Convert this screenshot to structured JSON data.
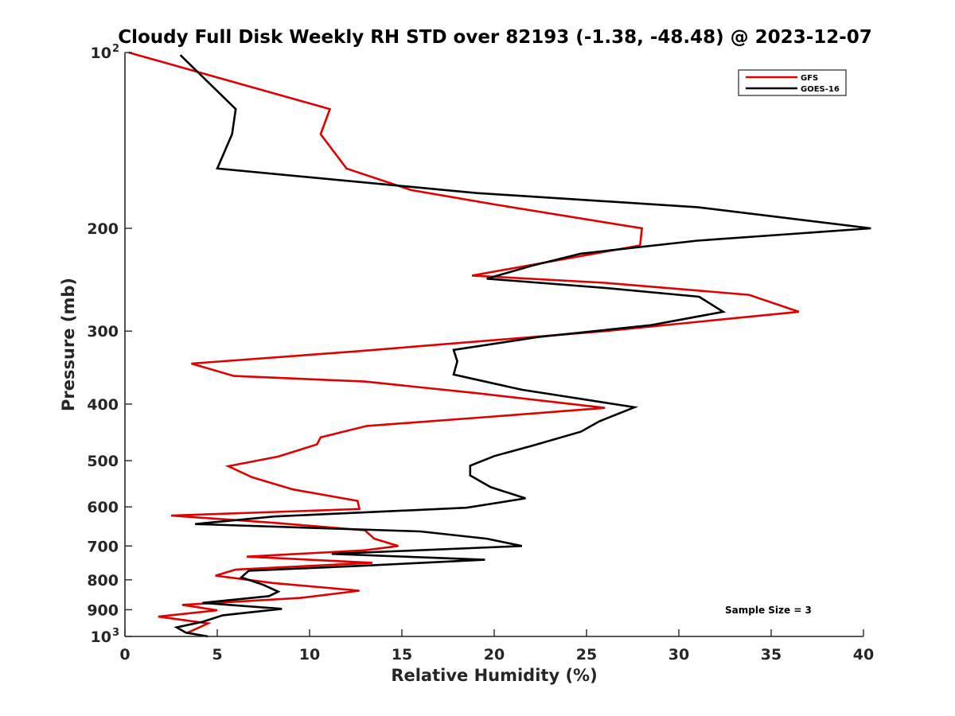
{
  "chart_data": {
    "type": "line",
    "title": "Cloudy Full Disk Weekly RH STD over 82193 (-1.38, -48.48) @ 2023-12-07",
    "xlabel": "Relative Humidity (%)",
    "ylabel": "Pressure (mb)",
    "xlim": [
      0,
      40
    ],
    "ylim": [
      100,
      1000
    ],
    "y_scale": "log",
    "y_reversed": true,
    "grid": false,
    "legend_position": "top-right",
    "x_ticks": [
      "0",
      "5",
      "10",
      "15",
      "20",
      "25",
      "30",
      "35",
      "40"
    ],
    "y_ticks": [
      {
        "value": 100,
        "label": "10",
        "sup": "2"
      },
      {
        "value": 200,
        "label": "200",
        "sup": ""
      },
      {
        "value": 300,
        "label": "300",
        "sup": ""
      },
      {
        "value": 400,
        "label": "400",
        "sup": ""
      },
      {
        "value": 500,
        "label": "500",
        "sup": ""
      },
      {
        "value": 600,
        "label": "600",
        "sup": ""
      },
      {
        "value": 700,
        "label": "700",
        "sup": ""
      },
      {
        "value": 800,
        "label": "800",
        "sup": ""
      },
      {
        "value": 900,
        "label": "900",
        "sup": ""
      },
      {
        "value": 1000,
        "label": "10",
        "sup": "3"
      }
    ],
    "series": [
      {
        "name": "GFS",
        "color": "#e00000",
        "points": [
          [
            0.2,
            100
          ],
          [
            11.1,
            125
          ],
          [
            10.6,
            138
          ],
          [
            12.0,
            158
          ],
          [
            15.5,
            172
          ],
          [
            20.0,
            182
          ],
          [
            28.0,
            200
          ],
          [
            27.9,
            214
          ],
          [
            18.8,
            241
          ],
          [
            26.0,
            248
          ],
          [
            33.8,
            260
          ],
          [
            36.5,
            278
          ],
          [
            26.0,
            300
          ],
          [
            12.5,
            325
          ],
          [
            3.6,
            341
          ],
          [
            5.9,
            358
          ],
          [
            13.0,
            366
          ],
          [
            19.0,
            383
          ],
          [
            26.0,
            406
          ],
          [
            20.0,
            420
          ],
          [
            13.1,
            436
          ],
          [
            10.6,
            456
          ],
          [
            10.4,
            469
          ],
          [
            8.3,
            492
          ],
          [
            5.6,
            511
          ],
          [
            6.9,
            534
          ],
          [
            9.1,
            560
          ],
          [
            12.6,
            586
          ],
          [
            12.7,
            605
          ],
          [
            2.5,
            621
          ],
          [
            8.1,
            639
          ],
          [
            13.0,
            658
          ],
          [
            13.5,
            680
          ],
          [
            14.8,
            700
          ],
          [
            13.0,
            712
          ],
          [
            6.6,
            730
          ],
          [
            13.4,
            748
          ],
          [
            6.0,
            768
          ],
          [
            4.9,
            787
          ],
          [
            8.0,
            810
          ],
          [
            12.7,
            835
          ],
          [
            9.5,
            859
          ],
          [
            3.1,
            883
          ],
          [
            5.0,
            902
          ],
          [
            1.8,
            925
          ],
          [
            4.5,
            950
          ],
          [
            3.4,
            985
          ]
        ]
      },
      {
        "name": "GOES-16",
        "color": "#000000",
        "points": [
          [
            3.0,
            101
          ],
          [
            6.0,
            125
          ],
          [
            5.8,
            138
          ],
          [
            5.0,
            158
          ],
          [
            19.0,
            174
          ],
          [
            31.0,
            184
          ],
          [
            40.4,
            200
          ],
          [
            31.0,
            210
          ],
          [
            24.7,
            221
          ],
          [
            22.0,
            232
          ],
          [
            19.6,
            244
          ],
          [
            26.0,
            253
          ],
          [
            31.1,
            262
          ],
          [
            32.4,
            278
          ],
          [
            28.5,
            293
          ],
          [
            22.4,
            307
          ],
          [
            17.8,
            323
          ],
          [
            18.0,
            338
          ],
          [
            17.8,
            356
          ],
          [
            21.5,
            378
          ],
          [
            27.6,
            405
          ],
          [
            25.7,
            428
          ],
          [
            24.7,
            446
          ],
          [
            22.1,
            471
          ],
          [
            20.0,
            491
          ],
          [
            18.7,
            510
          ],
          [
            18.7,
            530
          ],
          [
            19.8,
            555
          ],
          [
            21.7,
            580
          ],
          [
            18.5,
            602
          ],
          [
            8.1,
            623
          ],
          [
            3.8,
            642
          ],
          [
            16.0,
            661
          ],
          [
            19.6,
            680
          ],
          [
            21.5,
            700
          ],
          [
            11.2,
            722
          ],
          [
            19.5,
            739
          ],
          [
            13.5,
            755
          ],
          [
            6.7,
            772
          ],
          [
            6.3,
            792
          ],
          [
            7.5,
            816
          ],
          [
            8.3,
            838
          ],
          [
            7.8,
            853
          ],
          [
            4.2,
            876
          ],
          [
            8.5,
            897
          ],
          [
            5.3,
            920
          ],
          [
            4.2,
            944
          ],
          [
            2.8,
            965
          ],
          [
            3.3,
            985
          ],
          [
            4.5,
            1000
          ]
        ]
      }
    ],
    "annotations": [
      "Sample Size = 3"
    ]
  }
}
